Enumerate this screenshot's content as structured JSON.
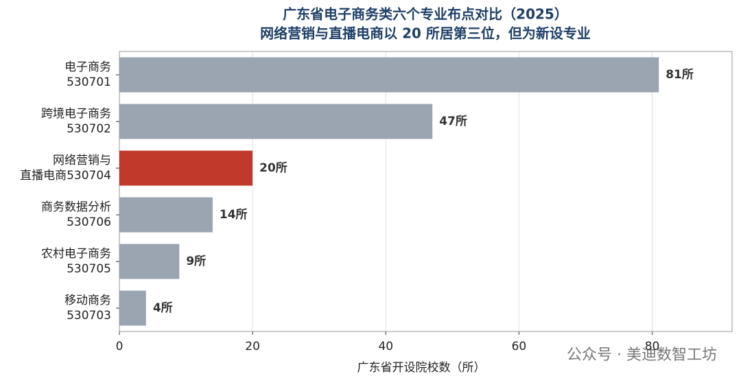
{
  "chart_data": {
    "type": "barh",
    "title": [
      "广东省电子商务类六个专业布点对比（2025）",
      "网络营销与直播电商以 20 所居第三位，但为新设专业"
    ],
    "categories": [
      [
        "电子商务",
        "530701"
      ],
      [
        "跨境电子商务",
        "530702"
      ],
      [
        "网络营销与",
        "直播电商530704"
      ],
      [
        "商务数据分析",
        "530706"
      ],
      [
        "农村电子商务",
        "530705"
      ],
      [
        "移动商务",
        "530703"
      ]
    ],
    "values": [
      81,
      47,
      20,
      14,
      9,
      4
    ],
    "value_labels": [
      "81所",
      "47所",
      "20所",
      "14所",
      "9所",
      "4所"
    ],
    "colors": [
      "#9aa5b1",
      "#9aa5b1",
      "#c0392b",
      "#9aa5b1",
      "#9aa5b1",
      "#9aa5b1"
    ],
    "xlim": [
      0,
      92
    ],
    "xticks": [
      0,
      20,
      40,
      60,
      80
    ],
    "xlabel": "广东省开设院校数（所）",
    "grid": true,
    "watermark": "公众号 · 美迪数智工坊"
  }
}
